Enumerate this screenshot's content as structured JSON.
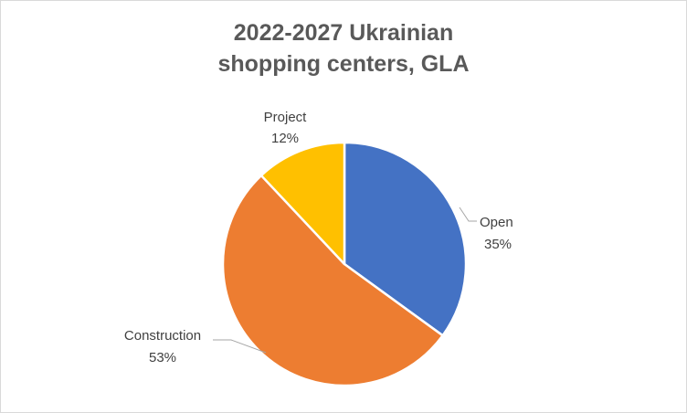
{
  "chart_data": {
    "type": "pie",
    "title_lines": [
      "2022-2027 Ukrainian",
      "shopping centers, GLA"
    ],
    "categories": [
      "Open",
      "Construction",
      "Project"
    ],
    "values": [
      35,
      53,
      12
    ],
    "labels": [
      {
        "name": "Open",
        "pct": "35%"
      },
      {
        "name": "Construction",
        "pct": "53%"
      },
      {
        "name": "Project",
        "pct": "12%"
      }
    ],
    "colors": [
      "#4472C4",
      "#ED7D31",
      "#FFC000"
    ],
    "legend": "none"
  }
}
